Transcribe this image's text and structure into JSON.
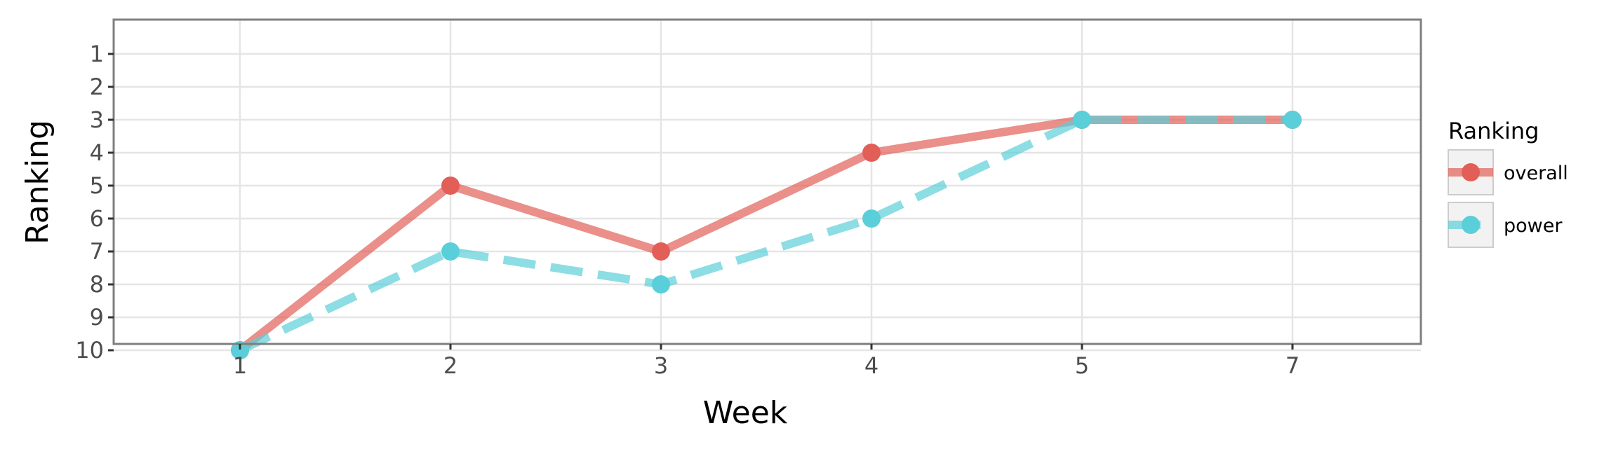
{
  "chart_data": {
    "type": "line",
    "xlabel": "Week",
    "ylabel": "Ranking",
    "categories": [
      "1",
      "2",
      "3",
      "4",
      "5",
      "7"
    ],
    "y_ticks": [
      "1",
      "2",
      "3",
      "4",
      "5",
      "6",
      "7",
      "8",
      "9",
      "10"
    ],
    "ylim": [
      10,
      1
    ],
    "y_reversed": true,
    "grid": true,
    "legend": {
      "title": "Ranking",
      "placement": "right"
    },
    "series": [
      {
        "name": "overall",
        "values": [
          10,
          5,
          7,
          4,
          3,
          3
        ],
        "color": "#E15F57",
        "line_style": "solid"
      },
      {
        "name": "power",
        "values": [
          10,
          7,
          8,
          6,
          3,
          3
        ],
        "color": "#5BCFD9",
        "line_style": "dashed"
      }
    ]
  }
}
